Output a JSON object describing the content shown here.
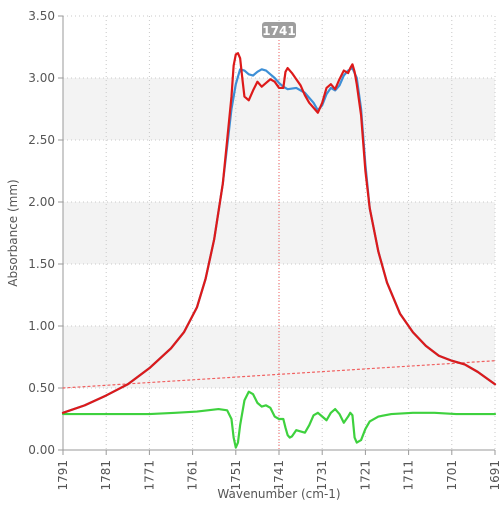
{
  "chart_data": {
    "type": "line",
    "xlabel": "Wavenumber (cm-1)",
    "ylabel": "Absorbance (mm)",
    "xlim": [
      1791,
      1691
    ],
    "ylim": [
      0,
      3.5
    ],
    "x_reversed": true,
    "grid": true,
    "x_ticks": [
      "1791",
      "1781",
      "1771",
      "1761",
      "1751",
      "1741",
      "1731",
      "1721",
      "1711",
      "1701",
      "1691"
    ],
    "y_ticks": [
      "0.00",
      "0.50",
      "1.00",
      "1.50",
      "2.00",
      "2.50",
      "3.00",
      "3.50"
    ],
    "cursor": {
      "x": 1741,
      "label": "1741"
    },
    "series": [
      {
        "color": "#3d8fd6",
        "points": [
          [
            1791,
            0.3
          ],
          [
            1786,
            0.36
          ],
          [
            1781,
            0.44
          ],
          [
            1776,
            0.53
          ],
          [
            1771,
            0.66
          ],
          [
            1766,
            0.82
          ],
          [
            1763,
            0.95
          ],
          [
            1760,
            1.15
          ],
          [
            1758,
            1.38
          ],
          [
            1756,
            1.7
          ],
          [
            1754,
            2.15
          ],
          [
            1753,
            2.45
          ],
          [
            1752,
            2.75
          ],
          [
            1751,
            2.95
          ],
          [
            1750,
            3.07
          ],
          [
            1749,
            3.06
          ],
          [
            1748,
            3.03
          ],
          [
            1747,
            3.02
          ],
          [
            1746,
            3.05
          ],
          [
            1745,
            3.07
          ],
          [
            1744,
            3.06
          ],
          [
            1743,
            3.03
          ],
          [
            1742,
            3.0
          ],
          [
            1741,
            2.96
          ],
          [
            1740,
            2.93
          ],
          [
            1739,
            2.91
          ],
          [
            1737,
            2.92
          ],
          [
            1735,
            2.88
          ],
          [
            1733,
            2.8
          ],
          [
            1732,
            2.74
          ],
          [
            1731,
            2.78
          ],
          [
            1730,
            2.87
          ],
          [
            1729,
            2.92
          ],
          [
            1728,
            2.9
          ],
          [
            1727,
            2.94
          ],
          [
            1726,
            3.02
          ],
          [
            1725,
            3.06
          ],
          [
            1724,
            3.08
          ],
          [
            1723,
            3.0
          ],
          [
            1722,
            2.75
          ],
          [
            1721,
            2.3
          ],
          [
            1720,
            1.95
          ],
          [
            1718,
            1.6
          ],
          [
            1716,
            1.35
          ],
          [
            1713,
            1.1
          ],
          [
            1710,
            0.95
          ],
          [
            1707,
            0.84
          ],
          [
            1704,
            0.76
          ],
          [
            1701,
            0.72
          ],
          [
            1698,
            0.69
          ],
          [
            1695,
            0.63
          ],
          [
            1691,
            0.53
          ]
        ]
      },
      {
        "color": "#dd1a1a",
        "points": [
          [
            1791,
            0.3
          ],
          [
            1786,
            0.36
          ],
          [
            1781,
            0.44
          ],
          [
            1776,
            0.53
          ],
          [
            1771,
            0.66
          ],
          [
            1766,
            0.82
          ],
          [
            1763,
            0.95
          ],
          [
            1760,
            1.15
          ],
          [
            1758,
            1.38
          ],
          [
            1756,
            1.7
          ],
          [
            1754,
            2.15
          ],
          [
            1753,
            2.5
          ],
          [
            1752,
            2.85
          ],
          [
            1751.5,
            3.1
          ],
          [
            1751,
            3.19
          ],
          [
            1750.5,
            3.2
          ],
          [
            1750,
            3.16
          ],
          [
            1749.5,
            3.0
          ],
          [
            1749,
            2.85
          ],
          [
            1748,
            2.82
          ],
          [
            1747,
            2.9
          ],
          [
            1746,
            2.97
          ],
          [
            1745,
            2.93
          ],
          [
            1744,
            2.96
          ],
          [
            1743,
            2.99
          ],
          [
            1742,
            2.97
          ],
          [
            1741,
            2.92
          ],
          [
            1740,
            2.92
          ],
          [
            1739.5,
            3.05
          ],
          [
            1739,
            3.08
          ],
          [
            1738,
            3.04
          ],
          [
            1737,
            2.99
          ],
          [
            1736,
            2.94
          ],
          [
            1735,
            2.86
          ],
          [
            1734,
            2.8
          ],
          [
            1733,
            2.76
          ],
          [
            1732,
            2.72
          ],
          [
            1731,
            2.8
          ],
          [
            1730,
            2.92
          ],
          [
            1729,
            2.95
          ],
          [
            1728,
            2.91
          ],
          [
            1727,
            2.99
          ],
          [
            1726,
            3.06
          ],
          [
            1725,
            3.04
          ],
          [
            1724.5,
            3.08
          ],
          [
            1724,
            3.11
          ],
          [
            1723.5,
            3.05
          ],
          [
            1723,
            2.95
          ],
          [
            1722,
            2.7
          ],
          [
            1721,
            2.25
          ],
          [
            1720,
            1.95
          ],
          [
            1718,
            1.6
          ],
          [
            1716,
            1.35
          ],
          [
            1713,
            1.1
          ],
          [
            1710,
            0.95
          ],
          [
            1707,
            0.84
          ],
          [
            1704,
            0.76
          ],
          [
            1701,
            0.72
          ],
          [
            1698,
            0.69
          ],
          [
            1695,
            0.63
          ],
          [
            1691,
            0.53
          ]
        ]
      },
      {
        "color": "#3ed13e",
        "points": [
          [
            1791,
            0.29
          ],
          [
            1781,
            0.29
          ],
          [
            1771,
            0.29
          ],
          [
            1765,
            0.3
          ],
          [
            1760,
            0.31
          ],
          [
            1755,
            0.33
          ],
          [
            1753,
            0.32
          ],
          [
            1752,
            0.25
          ],
          [
            1751.5,
            0.1
          ],
          [
            1751,
            0.02
          ],
          [
            1750.5,
            0.06
          ],
          [
            1750,
            0.2
          ],
          [
            1749,
            0.4
          ],
          [
            1748,
            0.47
          ],
          [
            1747,
            0.45
          ],
          [
            1746,
            0.38
          ],
          [
            1745,
            0.35
          ],
          [
            1744,
            0.36
          ],
          [
            1743,
            0.34
          ],
          [
            1742,
            0.27
          ],
          [
            1741,
            0.25
          ],
          [
            1740,
            0.25
          ],
          [
            1739.5,
            0.18
          ],
          [
            1739,
            0.12
          ],
          [
            1738.5,
            0.1
          ],
          [
            1738,
            0.11
          ],
          [
            1737,
            0.16
          ],
          [
            1736,
            0.15
          ],
          [
            1735,
            0.14
          ],
          [
            1734,
            0.2
          ],
          [
            1733,
            0.28
          ],
          [
            1732,
            0.3
          ],
          [
            1731,
            0.27
          ],
          [
            1730,
            0.24
          ],
          [
            1729,
            0.3
          ],
          [
            1728,
            0.33
          ],
          [
            1727,
            0.29
          ],
          [
            1726,
            0.22
          ],
          [
            1725,
            0.27
          ],
          [
            1724.5,
            0.3
          ],
          [
            1724,
            0.28
          ],
          [
            1723.5,
            0.1
          ],
          [
            1723,
            0.06
          ],
          [
            1722,
            0.08
          ],
          [
            1721,
            0.17
          ],
          [
            1720,
            0.23
          ],
          [
            1718,
            0.27
          ],
          [
            1715,
            0.29
          ],
          [
            1710,
            0.3
          ],
          [
            1705,
            0.3
          ],
          [
            1700,
            0.29
          ],
          [
            1695,
            0.29
          ],
          [
            1691,
            0.29
          ]
        ]
      },
      {
        "color": "#f06060",
        "dashed": true,
        "points": [
          [
            1791,
            0.5
          ],
          [
            1691,
            0.72
          ]
        ]
      }
    ]
  }
}
